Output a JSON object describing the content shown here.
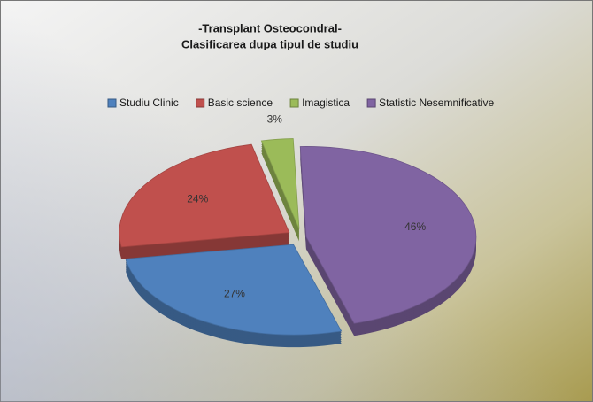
{
  "chart_data": {
    "type": "pie",
    "title": "-Transplant Osteocondral-",
    "subtitle": "Clasificarea dupa tipul de studiu",
    "categories": [
      "Studiu Clinic",
      "Basic science",
      "Imagistica",
      "Statistic Nesemnificative"
    ],
    "values": [
      27,
      24,
      3,
      46
    ],
    "value_labels": [
      "27%",
      "24%",
      "3%",
      "46%"
    ],
    "colors": [
      "#4f81bd",
      "#c0504d",
      "#9bbb59",
      "#8064a2"
    ],
    "legend": "top"
  }
}
